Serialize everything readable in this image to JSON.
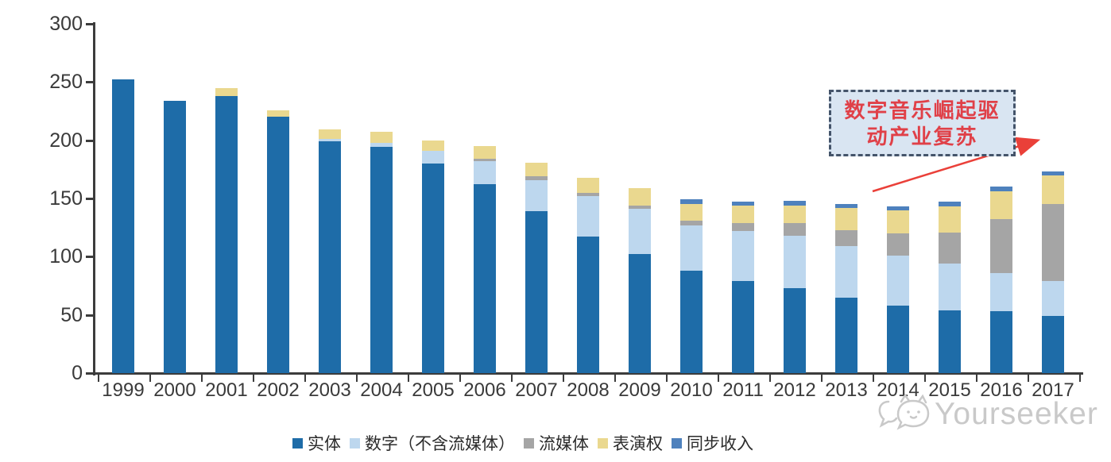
{
  "chart_data": {
    "type": "bar",
    "subtype": "stacked-vertical",
    "title": "",
    "xlabel": "",
    "ylabel": "",
    "ylim": [
      0,
      300
    ],
    "yticks": [
      0,
      50,
      100,
      150,
      200,
      250,
      300
    ],
    "grid": false,
    "legend_position": "bottom",
    "categories": [
      "1999",
      "2000",
      "2001",
      "2002",
      "2003",
      "2004",
      "2005",
      "2006",
      "2007",
      "2008",
      "2009",
      "2010",
      "2011",
      "2012",
      "2013",
      "2014",
      "2015",
      "2016",
      "2017"
    ],
    "series": [
      {
        "name": "实体",
        "color": "#1E6CA8",
        "values": [
          252,
          234,
          238,
          220,
          199,
          194,
          180,
          162,
          139,
          117,
          102,
          88,
          79,
          73,
          65,
          58,
          54,
          53,
          49
        ]
      },
      {
        "name": "数字（不含流媒体）",
        "color": "#BDD7EE",
        "values": [
          0,
          0,
          0,
          0,
          2,
          4,
          11,
          20,
          27,
          35,
          39,
          39,
          43,
          45,
          44,
          43,
          40,
          33,
          30
        ]
      },
      {
        "name": "流媒体",
        "color": "#A5A5A5",
        "values": [
          0,
          0,
          0,
          0,
          0,
          0,
          0,
          2,
          3,
          3,
          3,
          4,
          7,
          11,
          14,
          19,
          27,
          46,
          66
        ]
      },
      {
        "name": "表演权",
        "color": "#EAD88F",
        "values": [
          0,
          0,
          7,
          6,
          8,
          9,
          9,
          11,
          12,
          13,
          15,
          14,
          15,
          15,
          19,
          20,
          22,
          24,
          25
        ]
      },
      {
        "name": "同步收入",
        "color": "#4E81BD",
        "values": [
          0,
          0,
          0,
          0,
          0,
          0,
          0,
          0,
          0,
          0,
          0,
          4,
          3,
          4,
          3,
          3,
          4,
          4,
          3
        ]
      }
    ],
    "totals": [
      252,
      234,
      245,
      226,
      209,
      207,
      200,
      195,
      181,
      168,
      159,
      149,
      147,
      148,
      145,
      143,
      147,
      160,
      173
    ]
  },
  "annotation": {
    "line1": "数字音乐崛起驱",
    "line2": "动产业复苏",
    "text_color": "#E04048",
    "box_fill": "#D9E5F2",
    "box_border_color": "#44546A",
    "arrow_color": "#EA4039"
  },
  "axis": {
    "line_color": "#3c3c3c",
    "label_color": "#3a3a3a"
  },
  "watermark": {
    "text": "Yourseeker",
    "color": "#c9c9c9",
    "logo": "chat-bubble-cat-face-logo"
  }
}
